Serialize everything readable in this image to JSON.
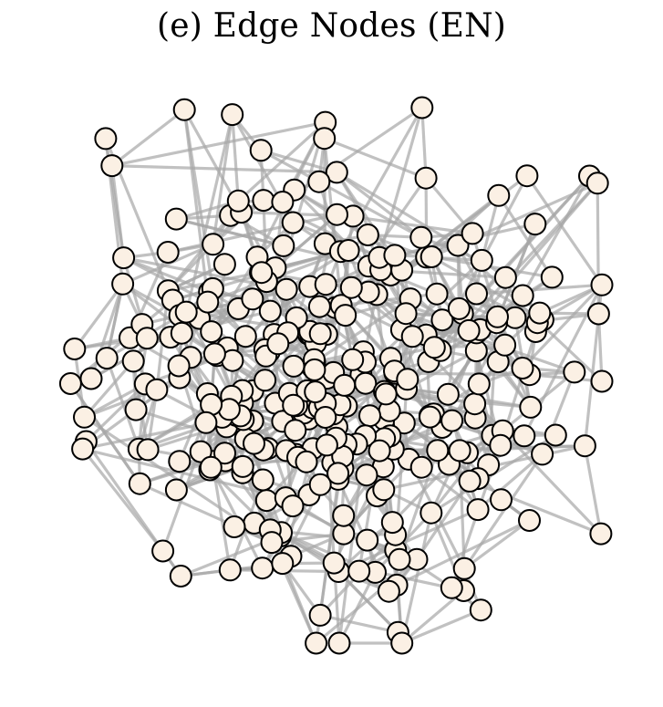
{
  "title": "(e) Edge Nodes (EN)",
  "colors": {
    "node_fill": "#fbf0e4",
    "node_stroke": "#000000",
    "edge": "#a6a6a6",
    "background": "#ffffff"
  },
  "graph": {
    "layout": "force-directed",
    "node_count": 320,
    "seed": 20,
    "edges_per_node": 3
  }
}
